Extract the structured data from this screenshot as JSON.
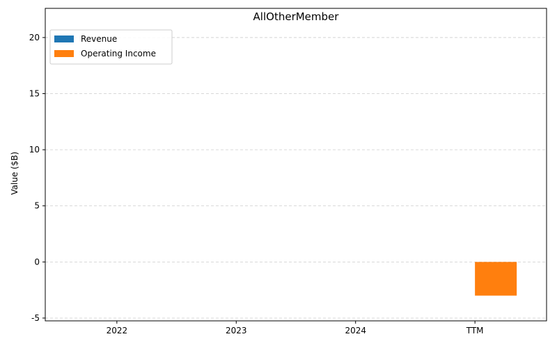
{
  "chart_data": {
    "type": "bar",
    "title": "AllOtherMember",
    "xlabel": "",
    "ylabel": "Value ($B)",
    "categories": [
      "2022",
      "2023",
      "2024",
      "TTM"
    ],
    "series": [
      {
        "name": "Revenue",
        "color": "#1f77b4",
        "values": [
          0,
          0,
          0,
          0
        ]
      },
      {
        "name": "Operating Income",
        "color": "#ff7f0e",
        "values": [
          0,
          0,
          0,
          -3.0
        ]
      }
    ],
    "ylim": [
      -5.25,
      22.6
    ],
    "yticks": [
      -5,
      0,
      5,
      10,
      15,
      20
    ],
    "grid": "y-dashed",
    "legend_position": "top-left"
  }
}
